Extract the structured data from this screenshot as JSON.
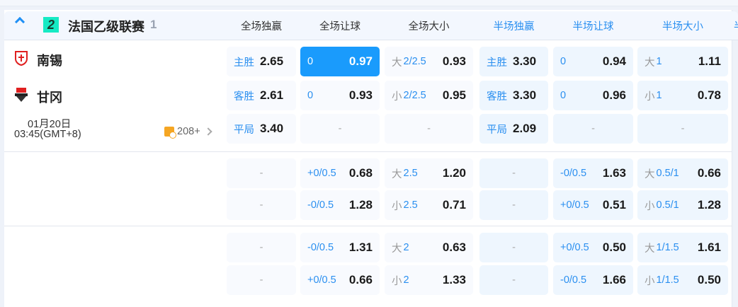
{
  "league": {
    "title": "法国乙级联赛",
    "count": "1",
    "icon": "league-logo-icon",
    "icon_text": "2",
    "icon_color": "#16eac4"
  },
  "columns": [
    "全场独赢",
    "全场让球",
    "全场大小",
    "半场独赢",
    "半场让球",
    "半场大小",
    "半"
  ],
  "match": {
    "home": {
      "name": "南锡",
      "logo_text": "NANCY"
    },
    "away": {
      "name": "甘冈",
      "logo_text": "EAG"
    },
    "date": "01月20日",
    "time": "03:45(GMT+8)",
    "more_count": "208+"
  },
  "colors": {
    "accent": "#1a9bfc",
    "label_blue": "#2a8ff0",
    "half_bg": "#eef6fe",
    "full_bg": "#f8fafe"
  },
  "rows": [
    [
      {
        "lab": "主胜",
        "odd": "2.65"
      },
      {
        "lab": "0",
        "odd": "0.97",
        "selected": true
      },
      {
        "pre": "大",
        "lab": "2/2.5",
        "odd": "0.93"
      },
      {
        "lab": "主胜",
        "odd": "3.30"
      },
      {
        "lab": "0",
        "odd": "0.94"
      },
      {
        "pre": "大",
        "lab": "1",
        "odd": "1.11"
      }
    ],
    [
      {
        "lab": "客胜",
        "odd": "2.61"
      },
      {
        "lab": "0",
        "odd": "0.93"
      },
      {
        "pre": "小",
        "lab": "2/2.5",
        "odd": "0.95"
      },
      {
        "lab": "客胜",
        "odd": "3.30"
      },
      {
        "lab": "0",
        "odd": "0.96"
      },
      {
        "pre": "小",
        "lab": "1",
        "odd": "0.78"
      }
    ],
    [
      {
        "lab": "平局",
        "odd": "3.40"
      },
      {
        "empty": "-"
      },
      {
        "empty": "-"
      },
      {
        "lab": "平局",
        "odd": "2.09"
      },
      {
        "empty": "-"
      },
      {
        "empty": "-"
      }
    ],
    [
      {
        "empty": "-"
      },
      {
        "lab": "+0/0.5",
        "odd": "0.68"
      },
      {
        "pre": "大",
        "lab": "2.5",
        "odd": "1.20"
      },
      {
        "empty": "-"
      },
      {
        "lab": "-0/0.5",
        "odd": "1.63"
      },
      {
        "pre": "大",
        "lab": "0.5/1",
        "odd": "0.66"
      }
    ],
    [
      {
        "empty": "-"
      },
      {
        "lab": "-0/0.5",
        "odd": "1.28"
      },
      {
        "pre": "小",
        "lab": "2.5",
        "odd": "0.71"
      },
      {
        "empty": "-"
      },
      {
        "lab": "+0/0.5",
        "odd": "0.51"
      },
      {
        "pre": "小",
        "lab": "0.5/1",
        "odd": "1.28"
      }
    ],
    [
      {
        "empty": "-"
      },
      {
        "lab": "-0/0.5",
        "odd": "1.31"
      },
      {
        "pre": "大",
        "lab": "2",
        "odd": "0.63"
      },
      {
        "empty": "-"
      },
      {
        "lab": "+0/0.5",
        "odd": "0.50"
      },
      {
        "pre": "大",
        "lab": "1/1.5",
        "odd": "1.61"
      }
    ],
    [
      {
        "empty": "-"
      },
      {
        "lab": "+0/0.5",
        "odd": "0.66"
      },
      {
        "pre": "小",
        "lab": "2",
        "odd": "1.33"
      },
      {
        "empty": "-"
      },
      {
        "lab": "-0/0.5",
        "odd": "1.66"
      },
      {
        "pre": "小",
        "lab": "1/1.5",
        "odd": "0.50"
      }
    ]
  ]
}
